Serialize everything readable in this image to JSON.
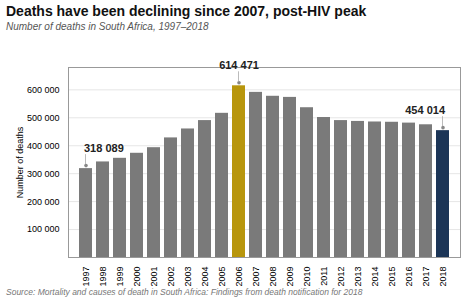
{
  "chart_data": {
    "type": "bar",
    "title": "Deaths have been declining since 2007, post-HIV peak",
    "subtitle": "Number of deaths in South Africa, 1997–2018",
    "source": "Source: Mortality and causes of death in South Africa: Findings from death notification for 2018",
    "ylabel": "Number of deaths",
    "categories": [
      "1997",
      "1998",
      "1999",
      "2000",
      "2001",
      "2002",
      "2003",
      "2004",
      "2005",
      "2006",
      "2007",
      "2008",
      "2009",
      "2010",
      "2011",
      "2012",
      "2013",
      "2014",
      "2015",
      "2016",
      "2017",
      "2018"
    ],
    "values": [
      318089,
      342000,
      355000,
      373000,
      393000,
      428000,
      460000,
      490000,
      516000,
      614471,
      591000,
      577000,
      573000,
      536000,
      501000,
      490000,
      487000,
      485000,
      484000,
      481000,
      475000,
      454014
    ],
    "colors": [
      "#7a7a7a",
      "#7a7a7a",
      "#7a7a7a",
      "#7a7a7a",
      "#7a7a7a",
      "#7a7a7a",
      "#7a7a7a",
      "#7a7a7a",
      "#7a7a7a",
      "#b8960c",
      "#7a7a7a",
      "#7a7a7a",
      "#7a7a7a",
      "#7a7a7a",
      "#7a7a7a",
      "#7a7a7a",
      "#7a7a7a",
      "#7a7a7a",
      "#7a7a7a",
      "#7a7a7a",
      "#7a7a7a",
      "#1c3557"
    ],
    "ylim": [
      0,
      680000
    ],
    "yticks": [
      {
        "value": 100000,
        "label": "100 000"
      },
      {
        "value": 200000,
        "label": "200 000"
      },
      {
        "value": 300000,
        "label": "300 000"
      },
      {
        "value": 400000,
        "label": "400 000"
      },
      {
        "value": 500000,
        "label": "500 000"
      },
      {
        "value": 600000,
        "label": "600 000"
      }
    ],
    "grid": true,
    "annotations": [
      {
        "category": "1997",
        "text": "318 089"
      },
      {
        "category": "2006",
        "text": "614 471"
      },
      {
        "category": "2018",
        "text": "454 014"
      }
    ]
  }
}
